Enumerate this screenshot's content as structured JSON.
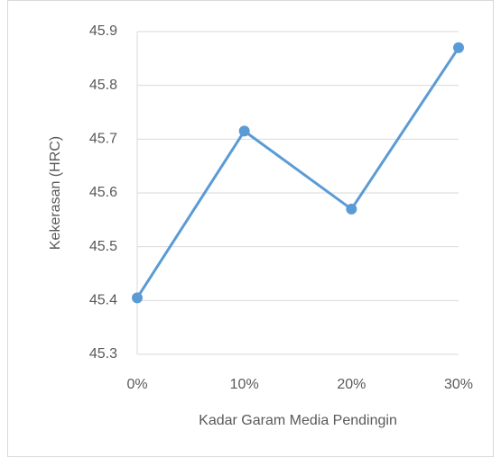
{
  "chart_data": {
    "type": "line",
    "categories": [
      "0%",
      "10%",
      "20%",
      "30%"
    ],
    "series": [
      {
        "color": "#5b9bd5",
        "values": [
          45.405,
          45.715,
          45.57,
          45.87
        ]
      }
    ],
    "xlabel": "Kadar Garam Media Pendingin",
    "ylabel": "Kekerasan (HRC)",
    "ylim": [
      45.3,
      45.9
    ],
    "yticks": [
      45.3,
      45.4,
      45.5,
      45.6,
      45.7,
      45.8,
      45.9
    ],
    "grid": true
  }
}
